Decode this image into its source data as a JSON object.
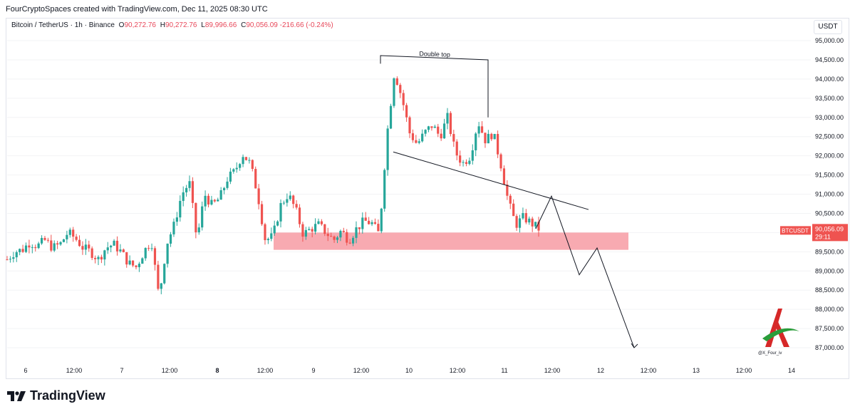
{
  "header": {
    "created_by": "FourCryptoSpaces created with TradingView.com, Dec 11, 2025 08:30 UTC"
  },
  "legend": {
    "symbol": "Bitcoin / TetherUS · 1h · Binance",
    "open_label": "O",
    "open": "90,272.76",
    "high_label": "H",
    "high": "90,272.76",
    "low_label": "L",
    "low": "89,996.66",
    "close_label": "C",
    "close": "90,056.09",
    "change": "-216.66 (-0.24%)"
  },
  "price_axis": {
    "currency": "USDT",
    "current_symbol": "BTCUSDT",
    "current_price": "90,056.09",
    "countdown": "29:11"
  },
  "annotation": {
    "double_top": "Double top"
  },
  "watermark": {
    "handle": "@X_Four_iv"
  },
  "footer": {
    "brand": "TradingView"
  },
  "colors": {
    "up": "#26a69a",
    "down": "#ef5350",
    "zone": "#f7a1a8",
    "text": "#131722"
  },
  "icons": [
    "tradingview-logo-icon",
    "author-logo-icon"
  ],
  "chart_data": {
    "type": "candlestick",
    "ylim": [
      86800,
      95300
    ],
    "y_ticks": [
      "95,000.00",
      "94,500.00",
      "94,000.00",
      "93,500.00",
      "93,000.00",
      "92,500.00",
      "92,000.00",
      "91,500.00",
      "91,000.00",
      "90,500.00",
      "90,000.00",
      "89,500.00",
      "89,000.00",
      "88,500.00",
      "88,000.00",
      "87,500.00",
      "87,000.00"
    ],
    "x_ticks": [
      "6",
      "12:00",
      "7",
      "12:00",
      "8",
      "12:00",
      "9",
      "12:00",
      "10",
      "12:00",
      "11",
      "12:00",
      "12",
      "12:00",
      "13",
      "12:00",
      "14"
    ],
    "close_path": [
      89300,
      89500,
      89550,
      89750,
      89650,
      89800,
      89600,
      89700,
      90000,
      89850,
      89600,
      89500,
      89300,
      89600,
      89700,
      89500,
      89200,
      89100,
      89500,
      89800,
      88300,
      89700,
      90200,
      91000,
      91300,
      89800,
      91000,
      90700,
      90900,
      91400,
      91600,
      92050,
      91800,
      91000,
      89800,
      89900,
      90700,
      91000,
      90600,
      89950,
      90100,
      90200,
      90000,
      89800,
      90050,
      89800,
      90100,
      90300,
      90250,
      89950,
      92500,
      94200,
      93500,
      92600,
      92300,
      92600,
      92800,
      92500,
      93000,
      92100,
      91800,
      92000,
      92900,
      92400,
      92600,
      91800,
      90800,
      90200,
      90400,
      90250,
      90100
    ],
    "resistance_zone": [
      89550,
      90000
    ],
    "trendline": [
      [
        92100,
        90600
      ]
    ],
    "double_top_level": [
      94400,
      94250
    ],
    "projection": [
      90100,
      90950,
      88900,
      89600,
      87000
    ]
  }
}
